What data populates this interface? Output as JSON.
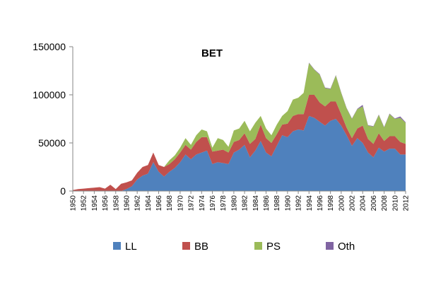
{
  "chart_data": {
    "type": "area",
    "stacked": true,
    "title": "BET",
    "xlabel": "",
    "ylabel": "",
    "ylim": [
      0,
      150000
    ],
    "yticks": [
      "0",
      "50000",
      "100000",
      "150000"
    ],
    "grid": false,
    "legend_position": "bottom",
    "x": [
      1950,
      1951,
      1952,
      1953,
      1954,
      1955,
      1956,
      1957,
      1958,
      1959,
      1960,
      1961,
      1962,
      1963,
      1964,
      1965,
      1966,
      1967,
      1968,
      1969,
      1970,
      1971,
      1972,
      1973,
      1974,
      1975,
      1976,
      1977,
      1978,
      1979,
      1980,
      1981,
      1982,
      1983,
      1984,
      1985,
      1986,
      1987,
      1988,
      1989,
      1990,
      1991,
      1992,
      1993,
      1994,
      1995,
      1996,
      1997,
      1998,
      1999,
      2000,
      2001,
      2002,
      2003,
      2004,
      2005,
      2006,
      2007,
      2008,
      2009,
      2010,
      2011,
      2012
    ],
    "xtick_labels": [
      "1950",
      "1952",
      "1954",
      "1956",
      "1958",
      "1960",
      "1962",
      "1964",
      "1966",
      "1968",
      "1970",
      "1972",
      "1974",
      "1976",
      "1978",
      "1980",
      "1982",
      "1984",
      "1986",
      "1988",
      "1990",
      "1992",
      "1994",
      "1996",
      "1998",
      "2000",
      "2002",
      "2004",
      "2006",
      "2008",
      "2010",
      "2012"
    ],
    "series": [
      {
        "name": "LL",
        "color": "#4f81bd",
        "values": [
          0,
          0,
          0,
          0,
          0,
          0,
          0,
          0,
          0,
          0,
          2000,
          5000,
          12000,
          16000,
          18000,
          30000,
          20000,
          15000,
          20000,
          24000,
          30000,
          38000,
          33000,
          38000,
          40000,
          42000,
          28000,
          30000,
          29000,
          28000,
          40000,
          43000,
          48000,
          35000,
          42000,
          52000,
          40000,
          36000,
          47000,
          58000,
          56000,
          62000,
          64000,
          63000,
          78000,
          76000,
          72000,
          68000,
          73000,
          75000,
          68000,
          58000,
          47000,
          55000,
          50000,
          40000,
          35000,
          45000,
          41000,
          44000,
          44000,
          38000,
          38000
        ]
      },
      {
        "name": "BB",
        "color": "#c0504d",
        "values": [
          1000,
          2000,
          2500,
          3000,
          3500,
          4000,
          2500,
          6500,
          2000,
          7500,
          7000,
          6000,
          7000,
          9000,
          9000,
          10000,
          7000,
          10000,
          8000,
          9000,
          10000,
          10000,
          10000,
          13000,
          16000,
          14000,
          13000,
          12000,
          14000,
          12000,
          11000,
          10000,
          12000,
          14000,
          12000,
          17000,
          15000,
          14000,
          12000,
          11000,
          14000,
          16000,
          16000,
          17000,
          22000,
          24000,
          20000,
          20000,
          20000,
          18000,
          12000,
          8000,
          8000,
          10000,
          18000,
          14000,
          14000,
          15000,
          11000,
          13000,
          13000,
          13000,
          11000
        ]
      },
      {
        "name": "PS",
        "color": "#9bbb59",
        "values": [
          0,
          0,
          0,
          0,
          0,
          0,
          0,
          0,
          0,
          0,
          0,
          0,
          0,
          0,
          0,
          0,
          0,
          0,
          4000,
          4000,
          5000,
          7000,
          5000,
          7000,
          8000,
          6000,
          4000,
          13000,
          10000,
          6000,
          12000,
          12000,
          13000,
          13000,
          17000,
          9000,
          10000,
          8000,
          10000,
          9000,
          13000,
          17000,
          17000,
          22000,
          33000,
          26000,
          29000,
          19000,
          13000,
          27000,
          22000,
          20000,
          20000,
          20000,
          20000,
          14000,
          18000,
          19000,
          14000,
          23000,
          18000,
          25000,
          22000
        ]
      },
      {
        "name": "Oth",
        "color": "#8064a2",
        "values": [
          0,
          0,
          0,
          0,
          0,
          0,
          0,
          0,
          0,
          0,
          0,
          0,
          0,
          0,
          0,
          0,
          0,
          0,
          0,
          0,
          0,
          0,
          0,
          0,
          0,
          0,
          0,
          0,
          0,
          0,
          0,
          0,
          0,
          0,
          0,
          0,
          0,
          0,
          0,
          0,
          0,
          0,
          0,
          0,
          500,
          500,
          500,
          500,
          500,
          500,
          500,
          500,
          500,
          500,
          1500,
          500,
          500,
          500,
          500,
          500,
          500,
          1500,
          500
        ]
      }
    ]
  }
}
